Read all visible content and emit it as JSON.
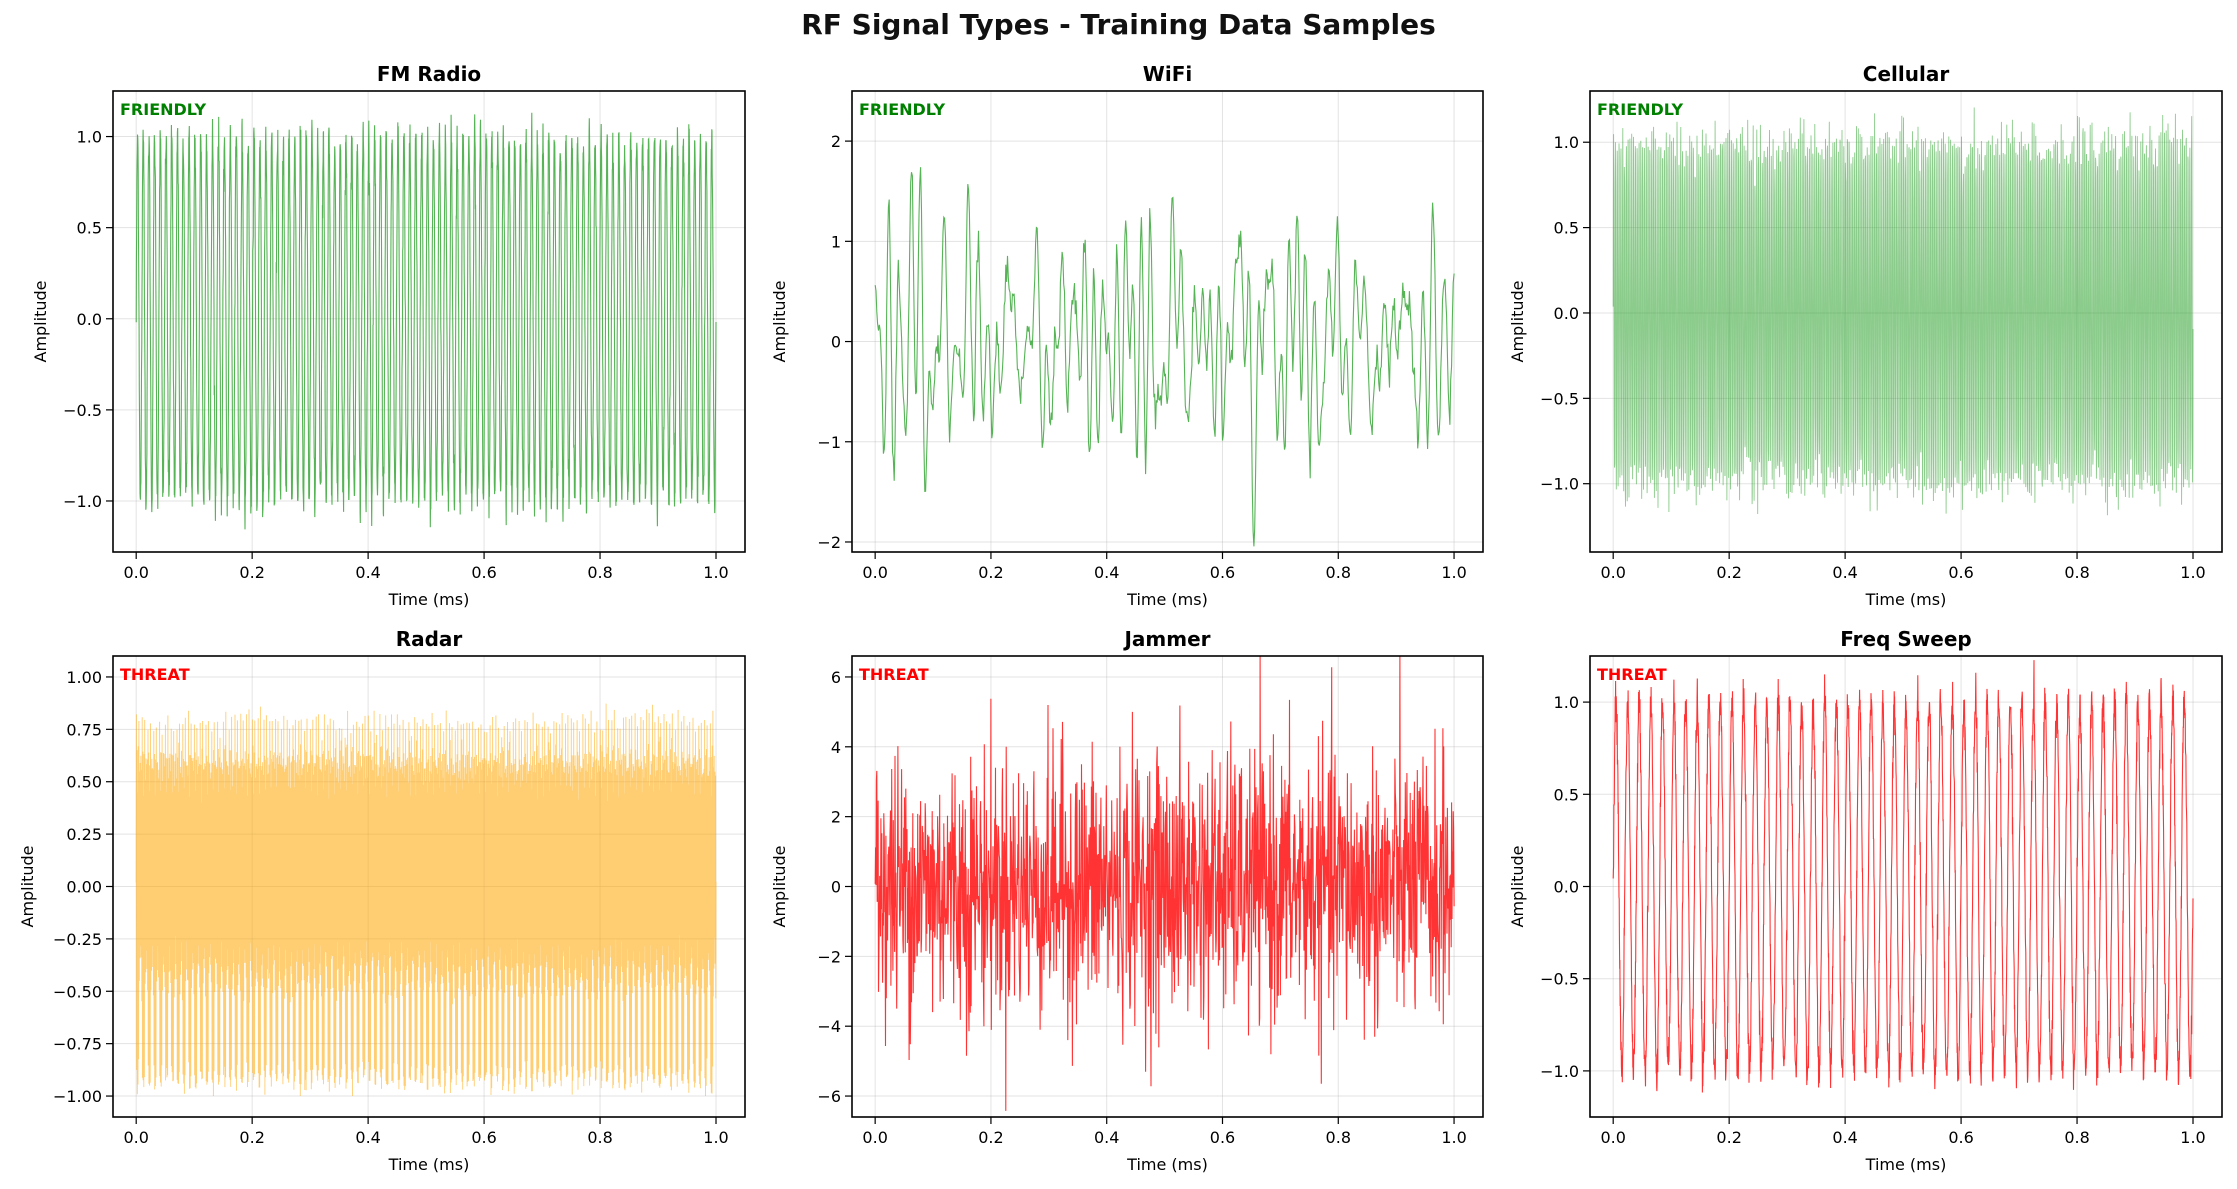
{
  "figure": {
    "title": "RF Signal Types - Training Data Samples"
  },
  "chart_data": [
    {
      "type": "line",
      "title": "FM Radio",
      "status": "FRIENDLY",
      "status_color": "#008000",
      "line_color": "#2ca02c",
      "xlabel": "Time (ms)",
      "ylabel": "Amplitude",
      "xlim": [
        -0.04,
        1.05
      ],
      "ylim": [
        -1.28,
        1.25
      ],
      "xticks": [
        0.0,
        0.2,
        0.4,
        0.6,
        0.8,
        1.0
      ],
      "xtick_labels": [
        "0.0",
        "0.2",
        "0.4",
        "0.6",
        "0.8",
        "1.0"
      ],
      "yticks": [
        -1.0,
        -0.5,
        0.0,
        0.5,
        1.0
      ],
      "ytick_labels": [
        "−1.0",
        "−0.5",
        "0.0",
        "0.5",
        "1.0"
      ],
      "signal": {
        "kind": "fm",
        "cycles": 100,
        "amplitude": 1.0,
        "noise": 0.06
      },
      "grid": true
    },
    {
      "type": "line",
      "title": "WiFi",
      "status": "FRIENDLY",
      "status_color": "#008000",
      "line_color": "#2ca02c",
      "xlabel": "Time (ms)",
      "ylabel": "Amplitude",
      "xlim": [
        -0.04,
        1.05
      ],
      "ylim": [
        -2.1,
        2.5
      ],
      "xticks": [
        0.0,
        0.2,
        0.4,
        0.6,
        0.8,
        1.0
      ],
      "xtick_labels": [
        "0.0",
        "0.2",
        "0.4",
        "0.6",
        "0.8",
        "1.0"
      ],
      "yticks": [
        -2,
        -1,
        0,
        1,
        2
      ],
      "ytick_labels": [
        "−2",
        "−1",
        "0",
        "1",
        "2"
      ],
      "signal": {
        "kind": "ofdm",
        "amplitude": 0.75,
        "noise": 0.08
      },
      "grid": true
    },
    {
      "type": "line",
      "title": "Cellular",
      "status": "FRIENDLY",
      "status_color": "#008000",
      "line_color": "#2ca02c",
      "xlabel": "Time (ms)",
      "ylabel": "Amplitude",
      "xlim": [
        -0.04,
        1.05
      ],
      "ylim": [
        -1.4,
        1.3
      ],
      "xticks": [
        0.0,
        0.2,
        0.4,
        0.6,
        0.8,
        1.0
      ],
      "xtick_labels": [
        "0.0",
        "0.2",
        "0.4",
        "0.6",
        "0.8",
        "1.0"
      ],
      "yticks": [
        -1.0,
        -0.5,
        0.0,
        0.5,
        1.0
      ],
      "ytick_labels": [
        "−1.0",
        "−0.5",
        "0.0",
        "0.5",
        "1.0"
      ],
      "signal": {
        "kind": "cellular",
        "cycles": 320,
        "amplitude": 1.0,
        "noise": 0.08
      },
      "grid": true
    },
    {
      "type": "line",
      "title": "Radar",
      "status": "THREAT",
      "status_color": "#ff0000",
      "line_color": "#ffa500",
      "xlabel": "Time (ms)",
      "ylabel": "Amplitude",
      "xlim": [
        -0.04,
        1.05
      ],
      "ylim": [
        -1.1,
        1.1
      ],
      "xticks": [
        0.0,
        0.2,
        0.4,
        0.6,
        0.8,
        1.0
      ],
      "xtick_labels": [
        "0.0",
        "0.2",
        "0.4",
        "0.6",
        "0.8",
        "1.0"
      ],
      "yticks": [
        -1.0,
        -0.75,
        -0.5,
        -0.25,
        0.0,
        0.25,
        0.5,
        0.75,
        1.0
      ],
      "ytick_labels": [
        "−1.00",
        "−0.75",
        "−0.50",
        "−0.25",
        "0.00",
        "0.25",
        "0.50",
        "0.75",
        "1.00"
      ],
      "signal": {
        "kind": "radar",
        "cycles": 900,
        "pulses": 100,
        "amplitude": 0.95,
        "noise": 0.03
      },
      "grid": true
    },
    {
      "type": "line",
      "title": "Jammer",
      "status": "THREAT",
      "status_color": "#ff0000",
      "line_color": "#ff0000",
      "xlabel": "Time (ms)",
      "ylabel": "Amplitude",
      "xlim": [
        -0.04,
        1.05
      ],
      "ylim": [
        -6.6,
        6.6
      ],
      "xticks": [
        0.0,
        0.2,
        0.4,
        0.6,
        0.8,
        1.0
      ],
      "xtick_labels": [
        "0.0",
        "0.2",
        "0.4",
        "0.6",
        "0.8",
        "1.0"
      ],
      "yticks": [
        -6,
        -4,
        -2,
        0,
        2,
        4,
        6
      ],
      "ytick_labels": [
        "−6",
        "−4",
        "−2",
        "0",
        "2",
        "4",
        "6"
      ],
      "signal": {
        "kind": "noise",
        "amplitude": 1.9,
        "noise": 0.0
      },
      "grid": true
    },
    {
      "type": "line",
      "title": "Freq Sweep",
      "status": "THREAT",
      "status_color": "#ff0000",
      "line_color": "#ff0000",
      "xlabel": "Time (ms)",
      "ylabel": "Amplitude",
      "xlim": [
        -0.04,
        1.05
      ],
      "ylim": [
        -1.25,
        1.25
      ],
      "xticks": [
        0.0,
        0.2,
        0.4,
        0.6,
        0.8,
        1.0
      ],
      "xtick_labels": [
        "0.0",
        "0.2",
        "0.4",
        "0.6",
        "0.8",
        "1.0"
      ],
      "yticks": [
        -1.0,
        -0.5,
        0.0,
        0.5,
        1.0
      ],
      "ytick_labels": [
        "−1.0",
        "−0.5",
        "0.0",
        "0.5",
        "1.0"
      ],
      "signal": {
        "kind": "sweep",
        "cycles": 50,
        "amplitude": 1.0,
        "noise": 0.06
      },
      "grid": true
    }
  ]
}
